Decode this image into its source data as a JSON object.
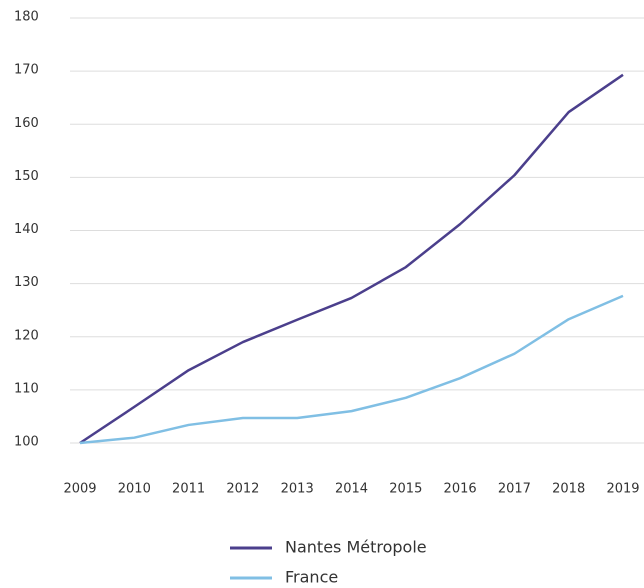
{
  "chart_data": {
    "type": "line",
    "categories": [
      "2009",
      "2010",
      "2011",
      "2012",
      "2013",
      "2014",
      "2015",
      "2016",
      "2017",
      "2018",
      "2019"
    ],
    "series": [
      {
        "name": "Nantes Métropole",
        "color": "#4b3f8c",
        "values": [
          100,
          106.8,
          113.7,
          119,
          123.2,
          127.3,
          133.1,
          141.2,
          150.4,
          162.3,
          169.3
        ]
      },
      {
        "name": "France",
        "color": "#80bfe4",
        "values": [
          100,
          101,
          103.4,
          104.7,
          104.7,
          106,
          108.5,
          112.2,
          116.8,
          123.3,
          127.7
        ]
      }
    ],
    "ylim": [
      100,
      180
    ],
    "yticks": [
      100,
      110,
      120,
      130,
      140,
      150,
      160,
      170,
      180
    ],
    "grid": true
  }
}
